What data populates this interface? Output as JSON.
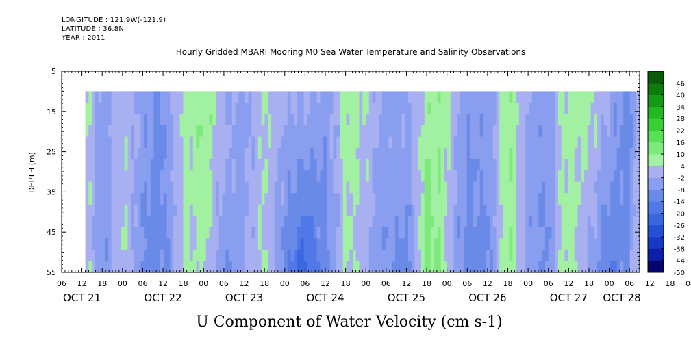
{
  "header": {
    "longitude": "LONGITUDE : 121.9W(-121.9)",
    "latitude": "LATITUDE : 36.8N",
    "year": "YEAR : 2011"
  },
  "chart_data": {
    "type": "heatmap",
    "title": "Hourly Gridded MBARI Mooring M0 Sea Water Temperature and Salinity Observations",
    "xlabel": "U Component of Water Velocity (cm s-1)",
    "ylabel": "DEPTH (m)",
    "ylim": [
      55,
      5
    ],
    "y_ticks": [
      5,
      15,
      25,
      35,
      45,
      55
    ],
    "data_depth_range": [
      10,
      55
    ],
    "x_hour_labels": [
      "06",
      "12",
      "18",
      "00",
      "06",
      "12",
      "18",
      "00",
      "06",
      "12",
      "18",
      "00",
      "06",
      "12",
      "18",
      "00",
      "06",
      "12",
      "18",
      "00",
      "06",
      "12",
      "18",
      "00",
      "06",
      "12",
      "18",
      "00",
      "06",
      "12",
      "18",
      "00",
      "06"
    ],
    "x_date_labels": [
      "OCT 21",
      "OCT 22",
      "OCT 23",
      "OCT 24",
      "OCT 25",
      "OCT 26",
      "OCT 27",
      "OCT 28"
    ],
    "x_range": [
      "2011-10-21T06:00",
      "2011-10-28T09:00"
    ],
    "data_time_range": [
      "2011-10-21T13:00",
      "2011-10-28T09:00"
    ],
    "colorbar": {
      "labels": [
        "46",
        "40",
        "34",
        "28",
        "22",
        "16",
        "10",
        "4",
        "-2",
        "-8",
        "-14",
        "-20",
        "-26",
        "-32",
        "-38",
        "-44",
        "-50"
      ],
      "range": [
        -50,
        52
      ],
      "step": 6
    },
    "velocity_profile": {
      "times": [
        "2011-10-21T13:00",
        "2011-10-21T18:00",
        "2011-10-22T00:00",
        "2011-10-22T06:00",
        "2011-10-22T12:00",
        "2011-10-22T18:00",
        "2011-10-23T00:00",
        "2011-10-23T06:00",
        "2011-10-23T12:00",
        "2011-10-23T18:00",
        "2011-10-24T00:00",
        "2011-10-24T06:00",
        "2011-10-24T12:00",
        "2011-10-24T18:00",
        "2011-10-25T00:00",
        "2011-10-25T06:00",
        "2011-10-25T12:00",
        "2011-10-25T18:00",
        "2011-10-26T00:00",
        "2011-10-26T06:00",
        "2011-10-26T12:00",
        "2011-10-26T18:00",
        "2011-10-27T00:00",
        "2011-10-27T06:00",
        "2011-10-27T12:00",
        "2011-10-27T18:00",
        "2011-10-28T00:00",
        "2011-10-28T06:00",
        "2011-10-28T09:00"
      ],
      "surface_u": [
        4,
        -4,
        2,
        -4,
        -10,
        6,
        10,
        2,
        -6,
        6,
        -2,
        2,
        -6,
        8,
        4,
        -4,
        -2,
        8,
        6,
        -6,
        -6,
        10,
        -2,
        -6,
        8,
        6,
        0,
        -14,
        4
      ],
      "bottom_u": [
        2,
        -8,
        4,
        -8,
        -12,
        4,
        4,
        -6,
        -4,
        6,
        -12,
        -22,
        -12,
        6,
        -2,
        -6,
        -12,
        14,
        4,
        -12,
        -10,
        10,
        -4,
        -10,
        10,
        -4,
        -14,
        -8,
        6
      ]
    }
  }
}
